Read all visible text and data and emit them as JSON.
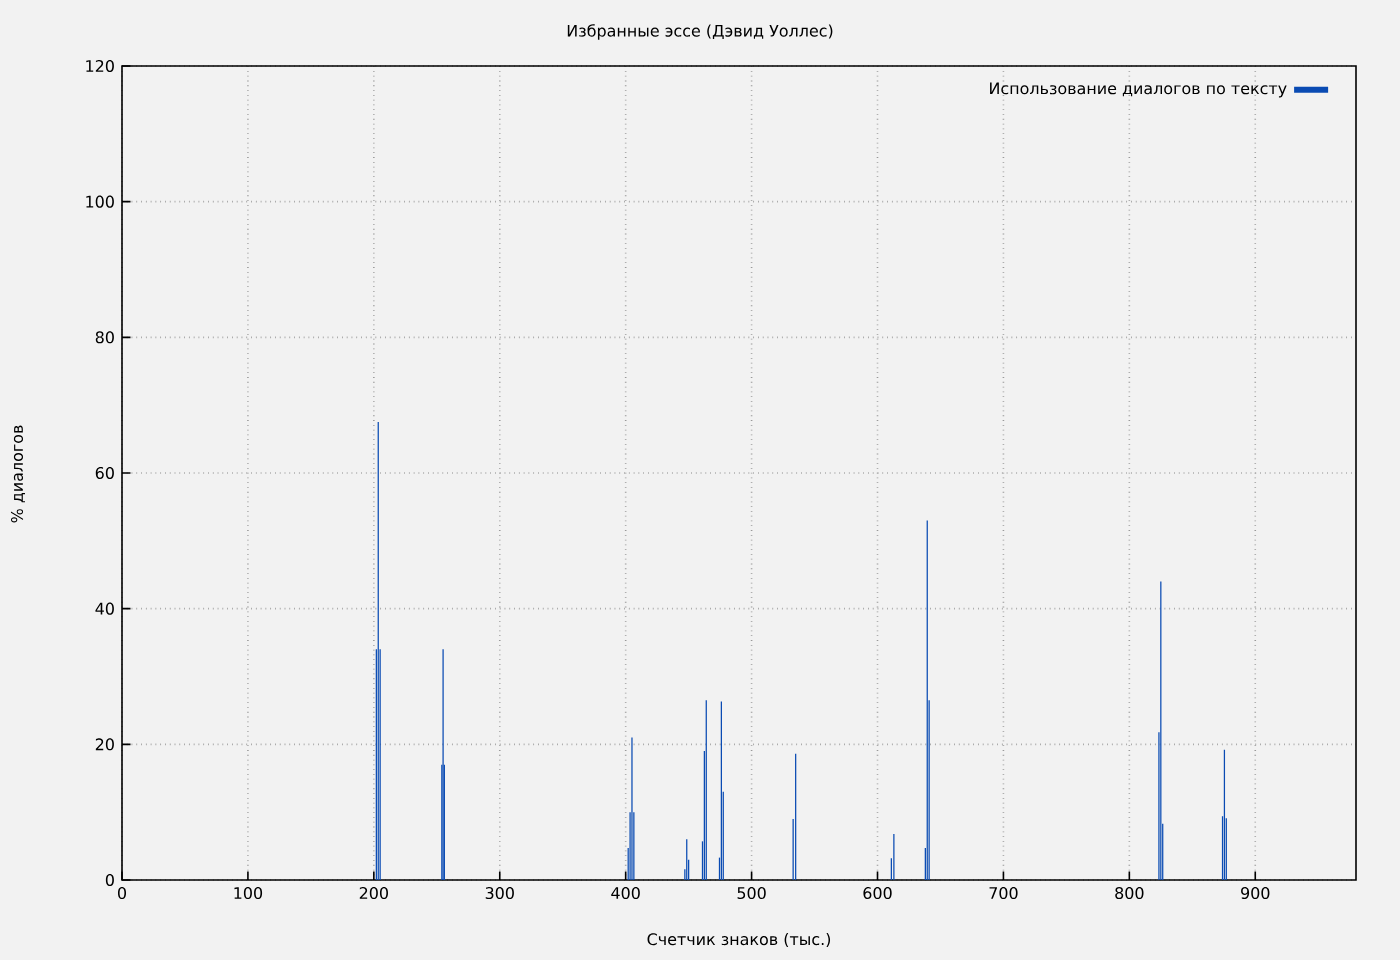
{
  "chart_data": {
    "type": "bar",
    "title": "Избранные эссе (Дэвид Уоллес)",
    "xlabel": "Счетчик знаков (тыс.)",
    "ylabel": "% диалогов",
    "x": [
      202,
      203.5,
      205,
      254,
      255,
      256,
      402,
      403.5,
      405,
      406.5,
      447,
      448.5,
      450,
      461,
      462.5,
      464,
      474.5,
      476,
      477.5,
      533,
      535,
      611,
      613,
      638,
      639.5,
      641,
      823.5,
      825,
      826.5,
      874,
      875.5,
      877
    ],
    "series": [
      {
        "name": "Использование диалогов по тексту",
        "color": "#0a4bb3",
        "values": [
          34,
          67.5,
          34,
          17,
          34,
          17,
          4.7,
          10,
          21,
          10,
          1.6,
          6,
          3,
          5.7,
          19,
          26.5,
          3.3,
          26.3,
          13,
          9,
          18.6,
          3.2,
          6.8,
          4.7,
          53,
          26.5,
          21.8,
          44,
          8.3,
          9.4,
          19.2,
          9.1
        ]
      }
    ],
    "xlim": [
      0,
      980
    ],
    "ylim": [
      0,
      120
    ],
    "xticks": [
      0,
      100,
      200,
      300,
      400,
      500,
      600,
      700,
      800,
      900
    ],
    "yticks": [
      0,
      20,
      40,
      60,
      80,
      100,
      120
    ],
    "grid": true,
    "legend": "top right"
  }
}
